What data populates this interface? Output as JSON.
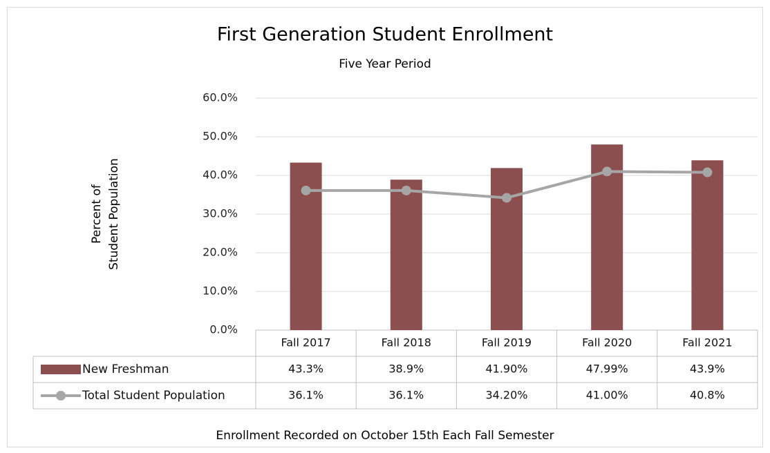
{
  "chart_data": {
    "type": "bar",
    "title": "First Generation Student Enrollment",
    "subtitle": "Five Year Period",
    "ylabel": [
      "Percent of",
      "Student Population"
    ],
    "note": "Enrollment Recorded on October 15th Each Fall Semester",
    "categories": [
      "Fall 2017",
      "Fall 2018",
      "Fall 2019",
      "Fall 2020",
      "Fall 2021"
    ],
    "series": [
      {
        "name": "New Freshman",
        "type": "bar",
        "color": "#8c4f4f",
        "values": [
          43.3,
          38.9,
          41.9,
          47.99,
          43.9
        ],
        "value_labels": [
          "43.3%",
          "38.9%",
          "41.90%",
          "47.99%",
          "43.9%"
        ]
      },
      {
        "name": "Total Student Population",
        "type": "line",
        "color": "#a6a6a6",
        "values": [
          36.1,
          36.1,
          34.2,
          41.0,
          40.8
        ],
        "value_labels": [
          "36.1%",
          "36.1%",
          "34.20%",
          "41.00%",
          "40.8%"
        ]
      }
    ],
    "ylim": [
      0,
      60
    ],
    "yticks": [
      {
        "value": 0,
        "label": "0.0%"
      },
      {
        "value": 10,
        "label": "10.0%"
      },
      {
        "value": 20,
        "label": "20.0%"
      },
      {
        "value": 30,
        "label": "30.0%"
      },
      {
        "value": 40,
        "label": "40.0%"
      },
      {
        "value": 50,
        "label": "50.0%"
      },
      {
        "value": 60,
        "label": "60.0%"
      }
    ],
    "grid": true
  }
}
